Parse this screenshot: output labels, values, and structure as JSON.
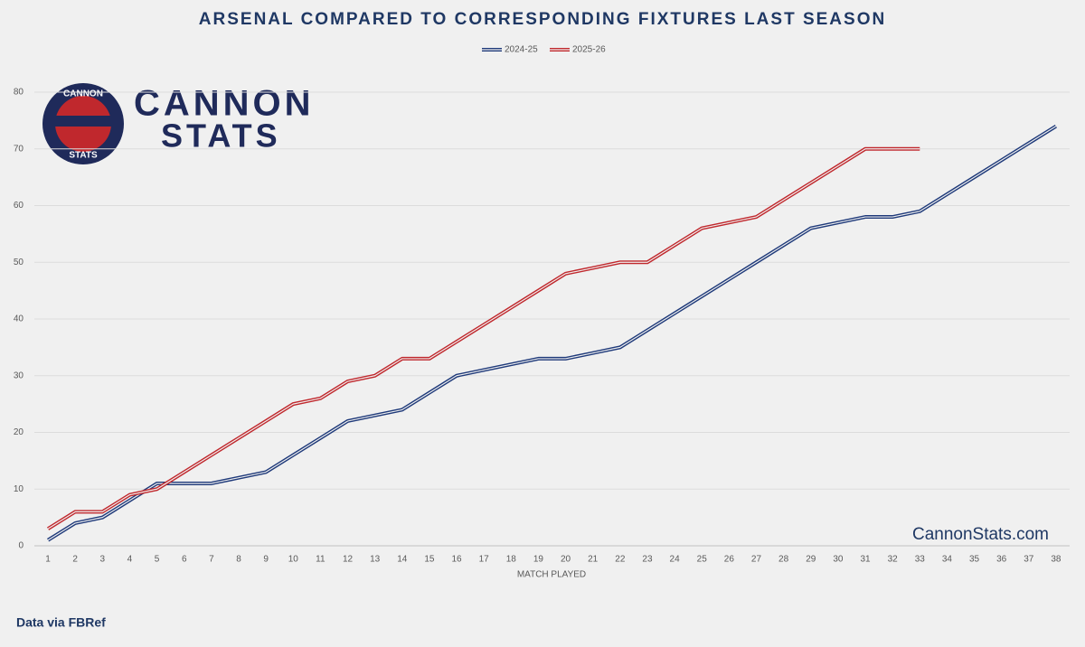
{
  "chart_data": {
    "type": "line",
    "title": "ARSENAL COMPARED TO CORRESPONDING FIXTURES LAST SEASON",
    "xlabel": "MATCH PLAYED",
    "categories": [
      1,
      2,
      3,
      4,
      5,
      6,
      7,
      8,
      9,
      10,
      11,
      12,
      13,
      14,
      15,
      16,
      17,
      18,
      19,
      20,
      21,
      22,
      23,
      24,
      25,
      26,
      27,
      28,
      29,
      30,
      31,
      32,
      33,
      34,
      35,
      36,
      37,
      38
    ],
    "series": [
      {
        "name": "2024-25",
        "color": "#1f3a7a",
        "values": [
          1,
          4,
          5,
          8,
          11,
          11,
          11,
          12,
          13,
          16,
          19,
          22,
          23,
          24,
          27,
          30,
          31,
          32,
          33,
          33,
          34,
          35,
          38,
          41,
          44,
          47,
          50,
          53,
          56,
          57,
          58,
          58,
          59,
          62,
          65,
          68,
          71,
          74
        ]
      },
      {
        "name": "2025-26",
        "color": "#c0282d",
        "values": [
          3,
          6,
          6,
          9,
          10,
          13,
          16,
          19,
          22,
          25,
          26,
          29,
          30,
          33,
          33,
          36,
          39,
          42,
          45,
          48,
          49,
          50,
          50,
          53,
          56,
          57,
          58,
          61,
          64,
          67,
          70,
          70,
          70,
          null,
          null,
          null,
          null,
          null
        ]
      }
    ],
    "ylim": [
      0,
      80
    ],
    "yticks": [
      0,
      10,
      20,
      30,
      40,
      50,
      60,
      70,
      80
    ],
    "grid": true,
    "legend": "top",
    "logo": {
      "ring_top": "CANNON",
      "ring_bottom": "STATS",
      "line1": "CANNON",
      "line2": "STATS"
    },
    "watermark": "CannonStats.com",
    "source": "Data via FBRef"
  }
}
